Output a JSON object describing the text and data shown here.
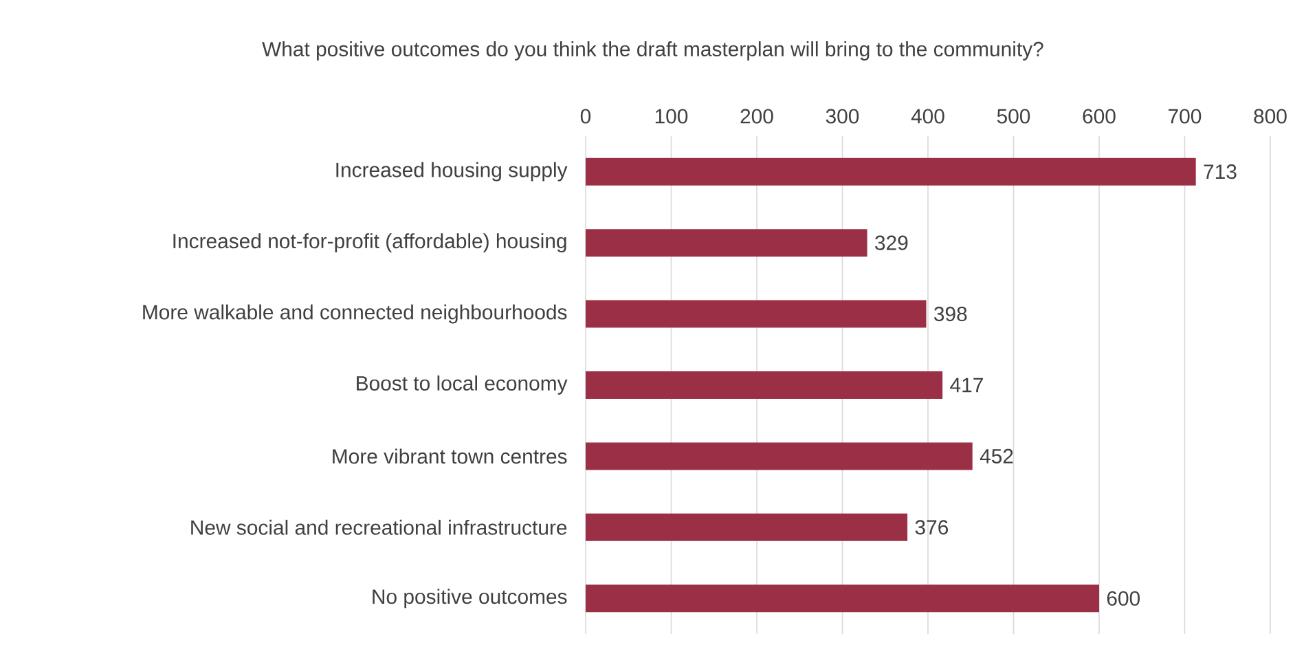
{
  "chart_data": {
    "type": "bar",
    "orientation": "horizontal",
    "title": "What positive outcomes do you think the draft masterplan will bring to the community?",
    "categories": [
      "Increased housing supply",
      "Increased not-for-profit (affordable) housing",
      "More walkable and connected neighbourhoods",
      "Boost to local economy",
      "More vibrant town centres",
      "New social and recreational infrastructure",
      "No positive outcomes"
    ],
    "values": [
      713,
      329,
      398,
      417,
      452,
      376,
      600
    ],
    "color": "#9b2f45",
    "xlim": [
      0,
      800
    ],
    "xticks": [
      0,
      100,
      200,
      300,
      400,
      500,
      600,
      700,
      800
    ],
    "grid": "x",
    "data_labels": true
  }
}
